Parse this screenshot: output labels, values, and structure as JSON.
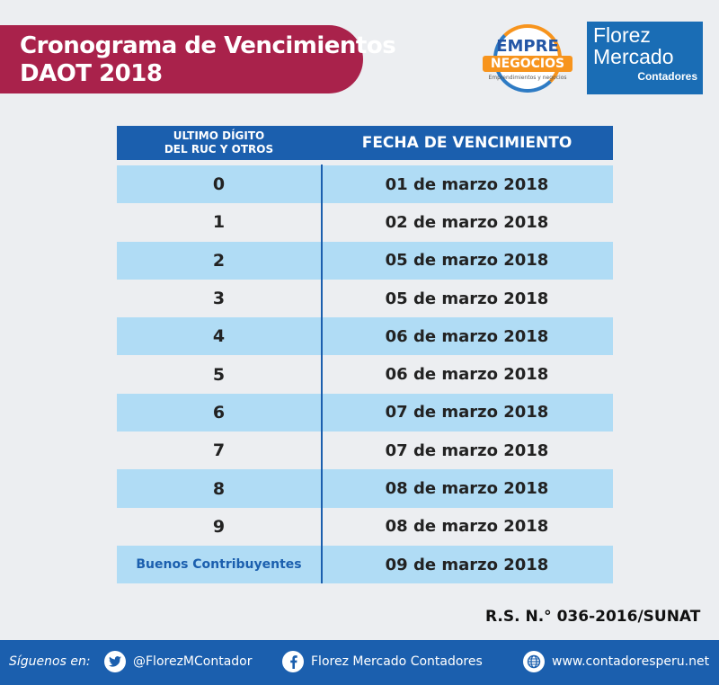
{
  "header": {
    "title_line1": "Cronograma de Vencimientos",
    "title_line2": "DAOT 2018"
  },
  "logos": {
    "empre_top": "EMPRE",
    "empre_bottom": "NEGOCIOS",
    "empre_tagline": "Emprendimientos y negocios",
    "florez_line1": "Florez",
    "florez_line2": "Mercado",
    "florez_line3": "Contadores"
  },
  "table": {
    "col1_header_line1": "ULTIMO DÍGITO",
    "col1_header_line2": "DEL RUC Y OTROS",
    "col2_header": "FECHA DE VENCIMIENTO",
    "rows": [
      {
        "digit": "0",
        "date": "01 de marzo 2018"
      },
      {
        "digit": "1",
        "date": "02 de marzo 2018"
      },
      {
        "digit": "2",
        "date": "05 de marzo 2018"
      },
      {
        "digit": "3",
        "date": "05 de marzo 2018"
      },
      {
        "digit": "4",
        "date": "06 de marzo 2018"
      },
      {
        "digit": "5",
        "date": "06 de marzo 2018"
      },
      {
        "digit": "6",
        "date": "07 de marzo 2018"
      },
      {
        "digit": "7",
        "date": "07 de marzo 2018"
      },
      {
        "digit": "8",
        "date": "08 de marzo 2018"
      },
      {
        "digit": "9",
        "date": "08 de marzo 2018"
      },
      {
        "digit": "Buenos Contribuyentes",
        "date": "09 de marzo 2018"
      }
    ]
  },
  "resolution": "R.S. N.° 036-2016/SUNAT",
  "footer": {
    "follow_label": "Síguenos en:",
    "twitter": "@FlorezMContador",
    "facebook": "Florez Mercado Contadores",
    "website": "www.contadoresperu.net"
  },
  "colors": {
    "title_banner": "#a9224b",
    "header_blue": "#1b5fae",
    "row_shade": "#b0dcf5",
    "background": "#eceef1"
  }
}
